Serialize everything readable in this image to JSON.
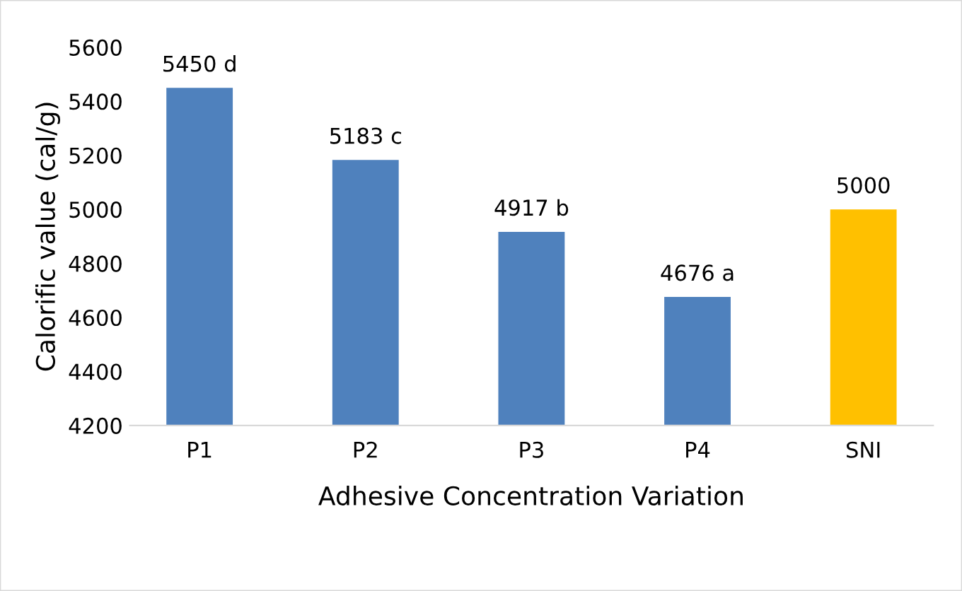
{
  "chart_data": {
    "type": "bar",
    "xlabel": "Adhesive Concentration Variation",
    "ylabel": "Calorific value (cal/g)",
    "categories": [
      "P1",
      "P2",
      "P3",
      "P4",
      "SNI"
    ],
    "values": [
      5450,
      5183,
      4917,
      4676,
      5000
    ],
    "colors": [
      "#4f81bd",
      "#4f81bd",
      "#4f81bd",
      "#4f81bd",
      "#ffc000"
    ],
    "value_labels": [
      "5450 d",
      "5183 c",
      "4917 b",
      "4676 a",
      "5000"
    ],
    "ylim": [
      4200,
      5600
    ],
    "yticks": [
      4200,
      4400,
      4600,
      4800,
      5000,
      5200,
      5400,
      5600
    ],
    "grid": false
  }
}
